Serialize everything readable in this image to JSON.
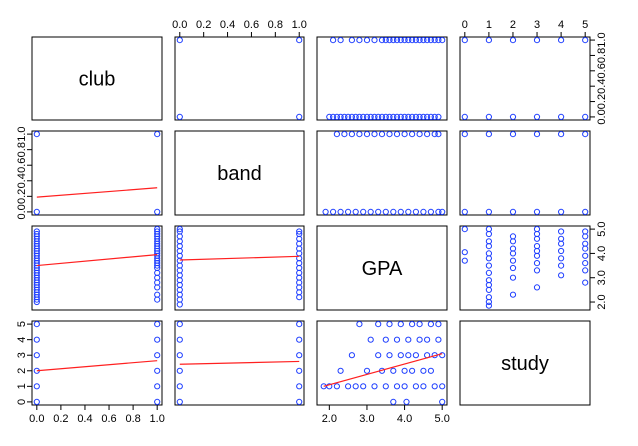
{
  "chart_data": {
    "type": "scatter",
    "matrix": true,
    "variables": [
      "club",
      "band",
      "GPA",
      "study"
    ],
    "ranges": {
      "club": [
        0,
        1
      ],
      "band": [
        0,
        1
      ],
      "GPA": [
        1.8,
        5.0
      ],
      "study": [
        0,
        5
      ]
    },
    "tick_labels": {
      "club": [
        "0.0",
        "0.2",
        "0.4",
        "0.6",
        "0.8",
        "1.0"
      ],
      "band": [
        "0.0",
        "0.2",
        "0.4",
        "0.6",
        "0.8",
        "1.0"
      ],
      "GPA": [
        "2.0",
        "3.0",
        "4.0",
        "5.0"
      ],
      "study": [
        "0",
        "1",
        "2",
        "3",
        "4",
        "5"
      ]
    },
    "tick_values": {
      "club": [
        0,
        0.2,
        0.4,
        0.6,
        0.8,
        1.0
      ],
      "band": [
        0,
        0.2,
        0.4,
        0.6,
        0.8,
        1.0
      ],
      "GPA": [
        2.0,
        3.0,
        4.0,
        5.0
      ],
      "study": [
        0,
        1,
        2,
        3,
        4,
        5
      ]
    },
    "point_color": "#1f3fff",
    "fit_line_color": "#ff2020",
    "panels": [
      {
        "x": "club",
        "y": "band",
        "points": [
          [
            0,
            0
          ],
          [
            0,
            1
          ],
          [
            1,
            0
          ],
          [
            1,
            1
          ]
        ],
        "fit": [
          0.0,
          0.19,
          1.0,
          0.31
        ]
      },
      {
        "x": "club",
        "y": "GPA",
        "points": [
          [
            0,
            2.0
          ],
          [
            0,
            2.1
          ],
          [
            0,
            2.2
          ],
          [
            0,
            2.3
          ],
          [
            0,
            2.4
          ],
          [
            0,
            2.5
          ],
          [
            0,
            2.6
          ],
          [
            0,
            2.7
          ],
          [
            0,
            2.8
          ],
          [
            0,
            2.9
          ],
          [
            0,
            3.0
          ],
          [
            0,
            3.1
          ],
          [
            0,
            3.2
          ],
          [
            0,
            3.3
          ],
          [
            0,
            3.4
          ],
          [
            0,
            3.5
          ],
          [
            0,
            3.6
          ],
          [
            0,
            3.7
          ],
          [
            0,
            3.8
          ],
          [
            0,
            3.9
          ],
          [
            0,
            4.0
          ],
          [
            0,
            4.1
          ],
          [
            0,
            4.2
          ],
          [
            0,
            4.3
          ],
          [
            0,
            4.4
          ],
          [
            0,
            4.5
          ],
          [
            0,
            4.6
          ],
          [
            0,
            4.7
          ],
          [
            0,
            4.8
          ],
          [
            0,
            4.9
          ],
          [
            1,
            2.1
          ],
          [
            1,
            2.3
          ],
          [
            1,
            2.6
          ],
          [
            1,
            2.8
          ],
          [
            1,
            3.0
          ],
          [
            1,
            3.2
          ],
          [
            1,
            3.4
          ],
          [
            1,
            3.5
          ],
          [
            1,
            3.6
          ],
          [
            1,
            3.7
          ],
          [
            1,
            3.8
          ],
          [
            1,
            3.9
          ],
          [
            1,
            4.0
          ],
          [
            1,
            4.1
          ],
          [
            1,
            4.2
          ],
          [
            1,
            4.3
          ],
          [
            1,
            4.4
          ],
          [
            1,
            4.5
          ],
          [
            1,
            4.6
          ],
          [
            1,
            4.7
          ],
          [
            1,
            4.8
          ],
          [
            1,
            4.9
          ],
          [
            1,
            5.0
          ]
        ],
        "fit": [
          0.0,
          3.5,
          1.0,
          3.95
        ]
      },
      {
        "x": "band",
        "y": "GPA",
        "points": [
          [
            0,
            1.9
          ],
          [
            0,
            2.1
          ],
          [
            0,
            2.3
          ],
          [
            0,
            2.5
          ],
          [
            0,
            2.7
          ],
          [
            0,
            2.9
          ],
          [
            0,
            3.1
          ],
          [
            0,
            3.3
          ],
          [
            0,
            3.5
          ],
          [
            0,
            3.7
          ],
          [
            0,
            3.9
          ],
          [
            0,
            4.1
          ],
          [
            0,
            4.3
          ],
          [
            0,
            4.5
          ],
          [
            0,
            4.7
          ],
          [
            0,
            4.9
          ],
          [
            0,
            5.0
          ],
          [
            1,
            2.2
          ],
          [
            1,
            2.4
          ],
          [
            1,
            2.6
          ],
          [
            1,
            2.8
          ],
          [
            1,
            3.0
          ],
          [
            1,
            3.2
          ],
          [
            1,
            3.4
          ],
          [
            1,
            3.6
          ],
          [
            1,
            3.8
          ],
          [
            1,
            4.0
          ],
          [
            1,
            4.2
          ],
          [
            1,
            4.4
          ],
          [
            1,
            4.6
          ],
          [
            1,
            4.8
          ],
          [
            1,
            4.9
          ]
        ],
        "fit": [
          0.0,
          3.73,
          1.0,
          3.88
        ]
      },
      {
        "x": "club",
        "y": "study",
        "points": [
          [
            0,
            0
          ],
          [
            0,
            1
          ],
          [
            0,
            2
          ],
          [
            0,
            3
          ],
          [
            0,
            4
          ],
          [
            0,
            5
          ],
          [
            1,
            0
          ],
          [
            1,
            1
          ],
          [
            1,
            2
          ],
          [
            1,
            3
          ],
          [
            1,
            4
          ],
          [
            1,
            5
          ]
        ],
        "fit": [
          0.0,
          2.0,
          1.0,
          2.65
        ]
      },
      {
        "x": "band",
        "y": "study",
        "points": [
          [
            0,
            0
          ],
          [
            0,
            1
          ],
          [
            0,
            2
          ],
          [
            0,
            3
          ],
          [
            0,
            4
          ],
          [
            0,
            5
          ],
          [
            1,
            0
          ],
          [
            1,
            1
          ],
          [
            1,
            2
          ],
          [
            1,
            3
          ],
          [
            1,
            4
          ],
          [
            1,
            5
          ]
        ],
        "fit": [
          0.0,
          2.42,
          1.0,
          2.6
        ]
      },
      {
        "x": "GPA",
        "y": "study",
        "points": [
          [
            1.85,
            1
          ],
          [
            2.0,
            1
          ],
          [
            2.2,
            1
          ],
          [
            2.3,
            2
          ],
          [
            2.5,
            1
          ],
          [
            2.6,
            3
          ],
          [
            2.7,
            1
          ],
          [
            2.8,
            5
          ],
          [
            2.9,
            1
          ],
          [
            3.0,
            2
          ],
          [
            3.1,
            4
          ],
          [
            3.2,
            1
          ],
          [
            3.3,
            3
          ],
          [
            3.3,
            5
          ],
          [
            3.4,
            2
          ],
          [
            3.5,
            1
          ],
          [
            3.5,
            4
          ],
          [
            3.6,
            3
          ],
          [
            3.6,
            5
          ],
          [
            3.7,
            2
          ],
          [
            3.7,
            0
          ],
          [
            3.8,
            1
          ],
          [
            3.8,
            4
          ],
          [
            3.9,
            3
          ],
          [
            3.9,
            5
          ],
          [
            4.0,
            2
          ],
          [
            4.0,
            1
          ],
          [
            4.05,
            0
          ],
          [
            4.1,
            4
          ],
          [
            4.1,
            3
          ],
          [
            4.2,
            5
          ],
          [
            4.2,
            2
          ],
          [
            4.3,
            1
          ],
          [
            4.3,
            3
          ],
          [
            4.4,
            4
          ],
          [
            4.4,
            5
          ],
          [
            4.5,
            2
          ],
          [
            4.5,
            1
          ],
          [
            4.6,
            3
          ],
          [
            4.6,
            4
          ],
          [
            4.7,
            5
          ],
          [
            4.7,
            2
          ],
          [
            4.8,
            1
          ],
          [
            4.8,
            3
          ],
          [
            4.9,
            4
          ],
          [
            4.9,
            5
          ],
          [
            5.0,
            0
          ],
          [
            5.0,
            1
          ],
          [
            5.0,
            3
          ]
        ],
        "fit": [
          1.85,
          1.0,
          5.0,
          3.1
        ]
      }
    ]
  }
}
